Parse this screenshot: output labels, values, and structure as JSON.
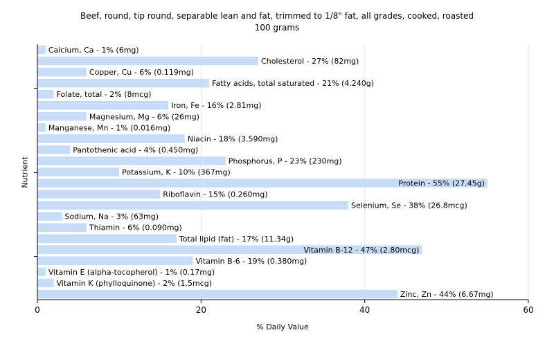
{
  "chart_data": {
    "type": "bar",
    "orientation": "horizontal",
    "title": "Beef, round, tip round, separable lean and fat, trimmed to 1/8\" fat, all grades, cooked, roasted",
    "subtitle": "100 grams",
    "xlabel": "% Daily Value",
    "ylabel": "Nutrient",
    "xlim": [
      0,
      60
    ],
    "xticks": [
      0,
      20,
      40,
      60
    ],
    "grid": true,
    "bar_color": "#c6dcf7",
    "categories": [
      "Calcium, Ca",
      "Cholesterol",
      "Copper, Cu",
      "Fatty acids, total saturated",
      "Folate, total",
      "Iron, Fe",
      "Magnesium, Mg",
      "Manganese, Mn",
      "Niacin",
      "Pantothenic acid",
      "Phosphorus, P",
      "Potassium, K",
      "Protein",
      "Riboflavin",
      "Selenium, Se",
      "Sodium, Na",
      "Thiamin",
      "Total lipid (fat)",
      "Vitamin B-12",
      "Vitamin B-6",
      "Vitamin E (alpha-tocopherol)",
      "Vitamin K (phylloquinone)",
      "Zinc, Zn"
    ],
    "values": [
      1,
      27,
      6,
      21,
      2,
      16,
      6,
      1,
      18,
      4,
      23,
      10,
      55,
      15,
      38,
      3,
      6,
      17,
      47,
      19,
      1,
      2,
      44
    ],
    "labels": [
      "Calcium, Ca - 1% (6mg)",
      "Cholesterol - 27% (82mg)",
      "Copper, Cu - 6% (0.119mg)",
      "Fatty acids, total saturated - 21% (4.240g)",
      "Folate, total - 2% (8mcg)",
      "Iron, Fe - 16% (2.81mg)",
      "Magnesium, Mg - 6% (26mg)",
      "Manganese, Mn - 1% (0.016mg)",
      "Niacin - 18% (3.590mg)",
      "Pantothenic acid - 4% (0.450mg)",
      "Phosphorus, P - 23% (230mg)",
      "Potassium, K - 10% (367mg)",
      "Protein - 55% (27.45g)",
      "Riboflavin - 15% (0.260mg)",
      "Selenium, Se - 38% (26.8mcg)",
      "Sodium, Na - 3% (63mg)",
      "Thiamin - 6% (0.090mg)",
      "Total lipid (fat) - 17% (11.34g)",
      "Vitamin B-12 - 47% (2.80mcg)",
      "Vitamin B-6 - 19% (0.380mg)",
      "Vitamin E (alpha-tocopherol) - 1% (0.17mg)",
      "Vitamin K (phylloquinone) - 2% (1.5mcg)",
      "Zinc, Zn - 44% (6.67mg)"
    ]
  }
}
